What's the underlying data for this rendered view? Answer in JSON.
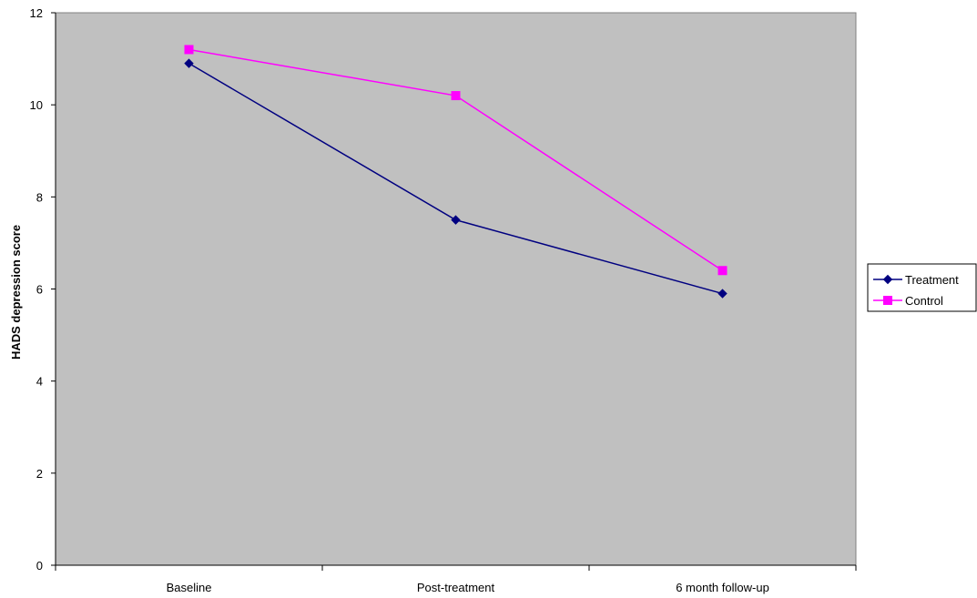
{
  "chart_data": {
    "type": "line",
    "title": "",
    "xlabel": "",
    "ylabel": "HADS depression score",
    "categories": [
      "Baseline",
      "Post-treatment",
      "6 month follow-up"
    ],
    "ylim": [
      0,
      12
    ],
    "yticks": [
      0,
      2,
      4,
      6,
      8,
      10,
      12
    ],
    "grid": false,
    "plot_background": "#C0C0C0",
    "legend_position": "right",
    "series": [
      {
        "name": "Treatment",
        "values": [
          10.9,
          7.5,
          5.9
        ],
        "color": "#000080",
        "marker": "diamond"
      },
      {
        "name": "Control",
        "values": [
          11.2,
          10.2,
          6.4
        ],
        "color": "#FF00FF",
        "marker": "square"
      }
    ]
  }
}
